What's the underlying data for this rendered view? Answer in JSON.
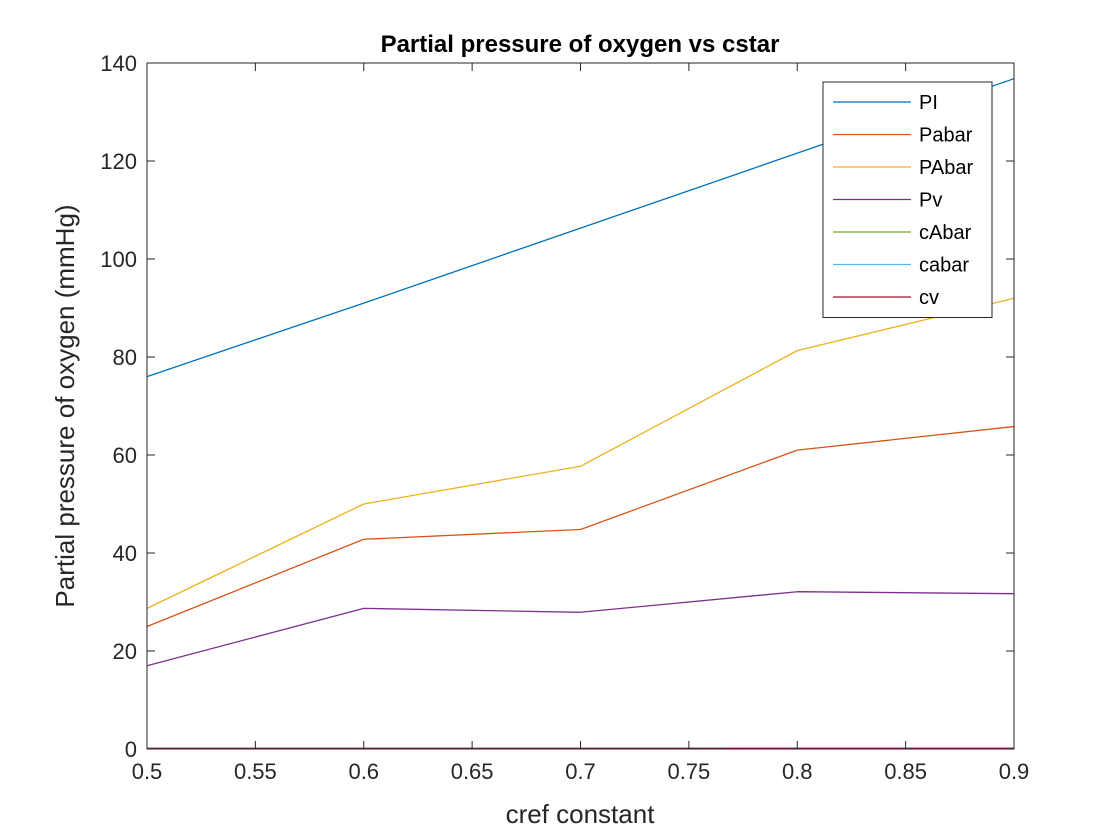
{
  "chart_data": {
    "type": "line",
    "title": "Partial pressure of oxygen vs cstar",
    "xlabel": "cref constant",
    "ylabel": "Partial pressure of oxygen (mmHg)",
    "xlim": [
      0.5,
      0.9
    ],
    "ylim": [
      0,
      140
    ],
    "xticks": [
      0.5,
      0.55,
      0.6,
      0.65,
      0.7,
      0.75,
      0.8,
      0.85,
      0.9
    ],
    "xtick_labels": [
      "0.5",
      "0.55",
      "0.6",
      "0.65",
      "0.7",
      "0.75",
      "0.8",
      "0.85",
      "0.9"
    ],
    "yticks": [
      0,
      20,
      40,
      60,
      80,
      100,
      120,
      140
    ],
    "ytick_labels": [
      "0",
      "20",
      "40",
      "60",
      "80",
      "100",
      "120",
      "140"
    ],
    "grid": false,
    "legend_position": "top-right",
    "x": [
      0.5,
      0.6,
      0.7,
      0.8,
      0.9
    ],
    "series": [
      {
        "name": "PI",
        "color": "#0072BD",
        "values": [
          76,
          91,
          106.3,
          121.6,
          136.8
        ]
      },
      {
        "name": "Pabar",
        "color": "#D95319",
        "values": [
          25,
          42.8,
          44.8,
          61,
          65.8
        ]
      },
      {
        "name": "PAbar",
        "color": "#EDB120",
        "values": [
          28.7,
          50,
          57.7,
          81.3,
          92
        ]
      },
      {
        "name": "Pv",
        "color": "#7E2F8E",
        "values": [
          17,
          28.7,
          27.9,
          32.1,
          31.7
        ]
      },
      {
        "name": "cAbar",
        "color": "#77AC30",
        "values": [
          0.18,
          0.18,
          0.18,
          0.18,
          0.18
        ]
      },
      {
        "name": "cabar",
        "color": "#4DBEEE",
        "values": [
          0.17,
          0.18,
          0.18,
          0.19,
          0.19
        ]
      },
      {
        "name": "cv",
        "color": "#A2142F",
        "values": [
          0.12,
          0.12,
          0.12,
          0.13,
          0.13
        ]
      }
    ]
  }
}
